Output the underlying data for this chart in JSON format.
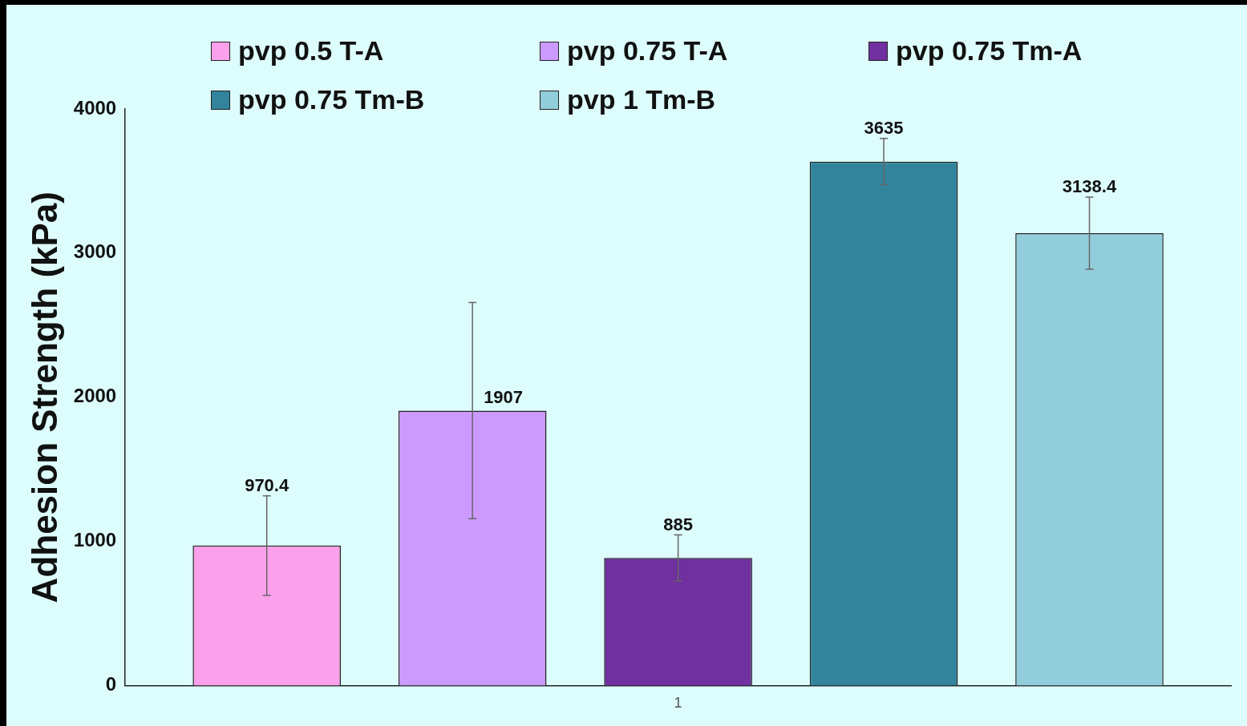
{
  "chart_data": {
    "type": "bar",
    "ylabel": "Adhesion Strength (kPa)",
    "categories": [
      "1"
    ],
    "series": [
      {
        "name": "pvp 0.5 T-A",
        "color": "#fba0ea",
        "values": [
          970.4
        ],
        "errors": [
          345
        ]
      },
      {
        "name": "pvp 0.75 T-A",
        "color": "#cc99ff",
        "values": [
          1907
        ],
        "errors": [
          750
        ]
      },
      {
        "name": "pvp 0.75 Tm-A",
        "color": "#7030a0",
        "values": [
          885
        ],
        "errors": [
          160
        ]
      },
      {
        "name": "pvp 0.75 Tm-B",
        "color": "#31849b",
        "values": [
          3635
        ],
        "errors": [
          160
        ]
      },
      {
        "name": "pvp 1 Tm-B",
        "color": "#92cddc",
        "values": [
          3138.4
        ],
        "errors": [
          250
        ]
      }
    ],
    "ylim": [
      0,
      4000
    ],
    "yticks": [
      0,
      1000,
      2000,
      3000,
      4000
    ],
    "grid": false,
    "legend": "top",
    "data_labels": true
  }
}
